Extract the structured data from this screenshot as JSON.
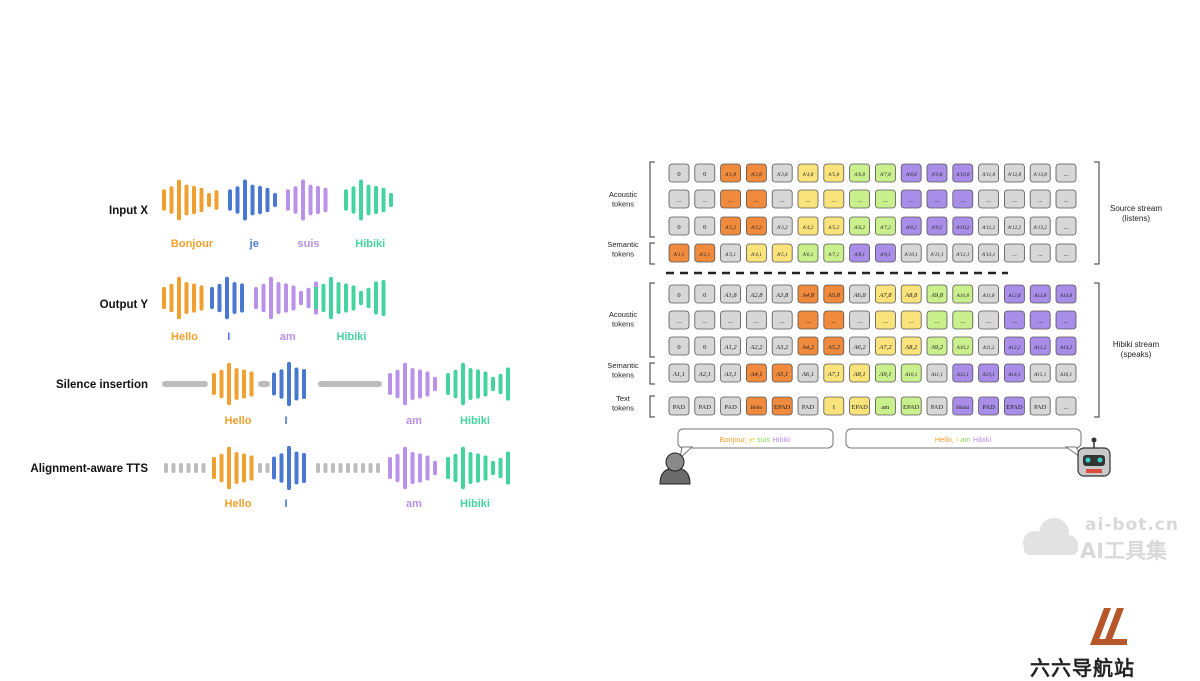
{
  "left_panel": {
    "rows": [
      {
        "label": "Input X",
        "words": [
          "Bonjour",
          "je",
          "suis",
          "Hibiki"
        ]
      },
      {
        "label": "Output Y",
        "words": [
          "Hello",
          "I",
          "am",
          "Hibiki"
        ]
      },
      {
        "label": "Silence insertion",
        "words": [
          "Hello",
          "I",
          "am",
          "Hibiki"
        ]
      },
      {
        "label": "Alignment-aware TTS",
        "words": [
          "Hello",
          "I",
          "am",
          "Hibiki"
        ]
      }
    ],
    "colors": {
      "orange": "#f0a030",
      "blue": "#4a78d0",
      "purple": "#b991e6",
      "green": "#45d4a0",
      "gray": "#bcbcbc"
    }
  },
  "right_panel": {
    "source_label": "Source stream\n(listens)",
    "hibiki_label": "Hibiki stream\n(speaks)",
    "group_labels": {
      "acoustic": "Acoustic\ntokens",
      "semantic": "Semantic\ntokens",
      "text": "Text\ntokens"
    },
    "rows": [
      {
        "cells": [
          "0",
          "0",
          "A'1,8",
          "A'2,8",
          "A'3,8",
          "A'4,8",
          "A'5,8",
          "A'6,8",
          "A'7,8",
          "A'8,8",
          "A'9,8",
          "A'10,8",
          "A'11,8",
          "A'12,8",
          "A'13,8",
          "..."
        ],
        "colors": [
          "g",
          "g",
          "o",
          "o",
          "g",
          "y",
          "y",
          "l",
          "l",
          "p",
          "p",
          "p",
          "g",
          "g",
          "g",
          "g"
        ]
      },
      {
        "cells": [
          "...",
          "...",
          "...",
          "...",
          "...",
          "...",
          "...",
          "...",
          "...",
          "...",
          "...",
          "...",
          "...",
          "...",
          "...",
          "..."
        ],
        "colors": [
          "g",
          "g",
          "o",
          "o",
          "g",
          "y",
          "y",
          "l",
          "l",
          "p",
          "p",
          "p",
          "g",
          "g",
          "g",
          "g"
        ]
      },
      {
        "cells": [
          "0",
          "0",
          "A'1,2",
          "A'2,2",
          "A'3,2",
          "A'4,2",
          "A'5,2",
          "A'6,2",
          "A'7,2",
          "A'8,2",
          "A'9,2",
          "A'10,2",
          "A'11,2",
          "A'12,2",
          "A'13,2",
          "..."
        ],
        "colors": [
          "g",
          "g",
          "o",
          "o",
          "g",
          "y",
          "y",
          "l",
          "l",
          "p",
          "p",
          "p",
          "g",
          "g",
          "g",
          "g"
        ]
      },
      {
        "cells": [
          "A'1,1",
          "A'2,1",
          "A'3,1",
          "A'4,1",
          "A'5,1",
          "A'6,1",
          "A'7,1",
          "A'8,1",
          "A'9,1",
          "A'10,1",
          "A'11,1",
          "A'12,1",
          "A'13,1",
          "...",
          "...",
          "..."
        ],
        "colors": [
          "o",
          "o",
          "g",
          "y",
          "y",
          "l",
          "l",
          "p",
          "p",
          "g",
          "g",
          "g",
          "g",
          "g",
          "g",
          "g"
        ]
      },
      {
        "cells": [
          "0",
          "0",
          "A1,8",
          "A2,8",
          "A3,8",
          "A4,8",
          "A5,8",
          "A6,8",
          "A7,8",
          "A8,8",
          "A9,8",
          "A10,8",
          "A11,8",
          "A12,8",
          "A13,8",
          "A14,8"
        ],
        "colors": [
          "g",
          "g",
          "g",
          "g",
          "g",
          "o",
          "o",
          "g",
          "y",
          "y",
          "l",
          "l",
          "g",
          "p",
          "p",
          "p"
        ]
      },
      {
        "cells": [
          "...",
          "...",
          "...",
          "...",
          "...",
          "...",
          "...",
          "...",
          "...",
          "...",
          "...",
          "...",
          "...",
          "...",
          "...",
          "..."
        ],
        "colors": [
          "g",
          "g",
          "g",
          "g",
          "g",
          "o",
          "o",
          "g",
          "y",
          "y",
          "l",
          "l",
          "g",
          "p",
          "p",
          "p"
        ]
      },
      {
        "cells": [
          "0",
          "0",
          "A1,2",
          "A2,2",
          "A3,2",
          "A4,2",
          "A5,2",
          "A6,2",
          "A7,2",
          "A8,2",
          "A9,2",
          "A10,2",
          "A11,2",
          "A12,2",
          "A13,2",
          "A14,2"
        ],
        "colors": [
          "g",
          "g",
          "g",
          "g",
          "g",
          "o",
          "o",
          "g",
          "y",
          "y",
          "l",
          "l",
          "g",
          "p",
          "p",
          "p"
        ]
      },
      {
        "cells": [
          "A1,1",
          "A2,1",
          "A3,1",
          "A4,1",
          "A5,1",
          "A6,1",
          "A7,1",
          "A8,1",
          "A9,1",
          "A10,1",
          "A11,1",
          "A12,1",
          "A13,1",
          "A14,1",
          "A15,1",
          "A16,1"
        ],
        "colors": [
          "g",
          "g",
          "g",
          "o",
          "o",
          "g",
          "y",
          "y",
          "l",
          "l",
          "g",
          "p",
          "p",
          "p",
          "g",
          "g"
        ]
      },
      {
        "cells": [
          "PAD",
          "PAD",
          "PAD",
          "Hello",
          "EPAD",
          "PAD",
          "I",
          "EPAD",
          "am",
          "EPAD",
          "PAD",
          "Hibiki",
          "PAD",
          "EPAD",
          "PAD",
          "..."
        ],
        "colors": [
          "g",
          "g",
          "g",
          "o",
          "o",
          "g",
          "y",
          "y",
          "l",
          "l",
          "g",
          "p",
          "p",
          "p",
          "g",
          "g"
        ]
      }
    ],
    "speech_left": [
      {
        "text": "Bonjour, ",
        "color": "#f0a030"
      },
      {
        "text": "je ",
        "color": "#f0d040"
      },
      {
        "text": "suis ",
        "color": "#8ed860"
      },
      {
        "text": "Hibiki",
        "color": "#b991e6"
      }
    ],
    "speech_right": [
      {
        "text": "Hello, ",
        "color": "#f0a030"
      },
      {
        "text": "I ",
        "color": "#f0d040"
      },
      {
        "text": "am ",
        "color": "#8ed860"
      },
      {
        "text": "Hibiki",
        "color": "#b991e6"
      }
    ],
    "cell_colors": {
      "g": "#d7d7d7",
      "o": "#f08a3c",
      "y": "#fbe37b",
      "l": "#c9f08c",
      "p": "#a98ee9"
    }
  },
  "watermark": {
    "line1": "ai-bot.cn",
    "line2": "AI工具集"
  },
  "site_name": "六六导航站"
}
